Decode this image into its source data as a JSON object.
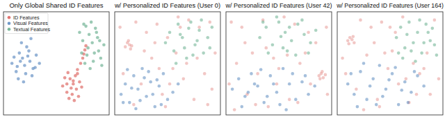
{
  "chart_data": [
    {
      "type": "scatter",
      "title": "Only Global Shared ID Features",
      "xlim": [
        0,
        100
      ],
      "ylim": [
        0,
        100
      ],
      "tick_labels": false,
      "grid": false,
      "legend": "upper left",
      "marker": "o",
      "series": [
        {
          "name": "ID Features",
          "color": "#d9534f",
          "x": [
            56,
            60,
            63,
            66,
            69,
            72,
            58,
            62,
            65,
            68,
            71,
            74,
            60,
            64,
            67,
            70,
            61,
            66,
            70,
            73,
            75,
            76,
            77,
            78
          ],
          "values": [
            28,
            22,
            35,
            30,
            25,
            32,
            36,
            16,
            20,
            38,
            18,
            27,
            30,
            26,
            14,
            40,
            41,
            33,
            44,
            50,
            55,
            59,
            63,
            67
          ]
        },
        {
          "name": "Visual Features",
          "color": "#4c7fba",
          "x": [
            8,
            12,
            15,
            18,
            20,
            22,
            25,
            28,
            31,
            34,
            10,
            14,
            17,
            21,
            24,
            27,
            30,
            13,
            19,
            23,
            16,
            26
          ],
          "values": [
            50,
            42,
            60,
            55,
            48,
            66,
            52,
            45,
            58,
            50,
            56,
            35,
            70,
            40,
            62,
            38,
            46,
            47,
            32,
            57,
            52,
            74
          ]
        },
        {
          "name": "Textual Features",
          "color": "#5aa783",
          "x": [
            72,
            75,
            78,
            80,
            83,
            86,
            89,
            92,
            95,
            74,
            77,
            81,
            84,
            87,
            90,
            93,
            79,
            85,
            88,
            82,
            76,
            91
          ],
          "values": [
            80,
            72,
            86,
            65,
            90,
            60,
            75,
            55,
            68,
            60,
            50,
            78,
            70,
            84,
            62,
            48,
            58,
            52,
            80,
            45,
            88,
            72
          ]
        }
      ]
    },
    {
      "type": "scatter",
      "title": "w/ Personalized ID Features (User 0)",
      "xlim": [
        0,
        100
      ],
      "ylim": [
        0,
        100
      ],
      "tick_labels": false,
      "grid": false,
      "marker": "o",
      "series": [
        {
          "color": "#e58f8c",
          "x": [
            10,
            12,
            14,
            16,
            13,
            15,
            5,
            20,
            30,
            40,
            50,
            60,
            70,
            80,
            90,
            95,
            8,
            25,
            35,
            45,
            55,
            65,
            75,
            85,
            92,
            18,
            28,
            38,
            48,
            58,
            68,
            78,
            88,
            42,
            52,
            62
          ],
          "values": [
            66,
            70,
            68,
            67,
            72,
            64,
            85,
            90,
            80,
            88,
            75,
            95,
            92,
            85,
            90,
            60,
            40,
            30,
            55,
            20,
            45,
            35,
            15,
            40,
            25,
            10,
            62,
            70,
            8,
            60,
            50,
            55,
            10,
            45,
            30,
            85
          ]
        },
        {
          "color": "#4c7fba",
          "x": [
            6,
            10,
            14,
            18,
            22,
            26,
            30,
            34,
            38,
            42,
            46,
            50,
            55,
            60,
            12,
            20,
            28,
            36,
            44,
            16,
            24,
            32,
            40,
            8
          ],
          "values": [
            20,
            30,
            12,
            38,
            25,
            45,
            18,
            32,
            8,
            28,
            40,
            15,
            22,
            30,
            44,
            6,
            36,
            20,
            10,
            26,
            14,
            42,
            34,
            12
          ]
        },
        {
          "color": "#5aa783",
          "x": [
            48,
            52,
            56,
            60,
            64,
            68,
            72,
            76,
            80,
            84,
            88,
            92,
            58,
            66,
            74,
            82,
            90,
            62,
            70,
            78
          ],
          "values": [
            70,
            80,
            62,
            88,
            75,
            55,
            90,
            68,
            82,
            60,
            75,
            85,
            50,
            65,
            58,
            92,
            65,
            78,
            84,
            72
          ]
        }
      ]
    },
    {
      "type": "scatter",
      "title": "w/ Personalized ID Features (User 42)",
      "xlim": [
        0,
        100
      ],
      "ylim": [
        0,
        100
      ],
      "tick_labels": false,
      "grid": false,
      "marker": "o",
      "series": [
        {
          "color": "#e58f8c",
          "x": [
            88,
            90,
            92,
            94,
            89,
            91,
            5,
            15,
            25,
            35,
            45,
            55,
            65,
            75,
            85,
            95,
            10,
            20,
            30,
            40,
            50,
            60,
            70,
            80,
            8,
            18,
            28,
            38,
            48,
            58,
            68,
            78,
            96,
            3
          ],
          "values": [
            38,
            40,
            36,
            39,
            35,
            42,
            90,
            85,
            60,
            92,
            55,
            95,
            88,
            60,
            70,
            85,
            50,
            20,
            40,
            8,
            45,
            15,
            50,
            30,
            5,
            70,
            10,
            65,
            30,
            58,
            12,
            80,
            20,
            30
          ]
        },
        {
          "color": "#4c7fba",
          "x": [
            6,
            12,
            18,
            24,
            30,
            36,
            42,
            48,
            54,
            60,
            66,
            72,
            78,
            84,
            15,
            27,
            39,
            51,
            63,
            75,
            21,
            33,
            45,
            57
          ],
          "values": [
            25,
            35,
            18,
            40,
            28,
            12,
            38,
            22,
            45,
            30,
            15,
            32,
            20,
            28,
            8,
            30,
            18,
            10,
            40,
            38,
            22,
            44,
            30,
            5
          ]
        },
        {
          "color": "#5aa783",
          "x": [
            32,
            38,
            44,
            50,
            56,
            62,
            68,
            74,
            80,
            85,
            40,
            48,
            54,
            60,
            66,
            72,
            35,
            58,
            78,
            52
          ],
          "values": [
            75,
            85,
            68,
            90,
            80,
            72,
            88,
            78,
            70,
            82,
            60,
            95,
            65,
            85,
            58,
            92,
            90,
            62,
            60,
            76
          ]
        }
      ]
    },
    {
      "type": "scatter",
      "title": "w/ Personalized ID Features (User 164)",
      "xlim": [
        0,
        100
      ],
      "ylim": [
        0,
        100
      ],
      "tick_labels": false,
      "grid": false,
      "marker": "o",
      "series": [
        {
          "color": "#e58f8c",
          "x": [
            10,
            12,
            14,
            16,
            11,
            15,
            5,
            22,
            32,
            42,
            52,
            62,
            72,
            82,
            92,
            96,
            8,
            18,
            28,
            38,
            48,
            58,
            68,
            78,
            88,
            25,
            35,
            45,
            55,
            65,
            75,
            85,
            40,
            50
          ],
          "values": [
            72,
            75,
            73,
            70,
            69,
            76,
            55,
            92,
            85,
            90,
            62,
            95,
            50,
            45,
            92,
            35,
            40,
            25,
            58,
            15,
            45,
            30,
            12,
            40,
            20,
            5,
            70,
            60,
            80,
            35,
            20,
            60,
            8,
            85
          ]
        },
        {
          "color": "#4c7fba",
          "x": [
            10,
            16,
            22,
            28,
            34,
            40,
            46,
            52,
            58,
            64,
            70,
            76,
            82,
            19,
            31,
            43,
            55,
            67,
            25,
            37,
            49,
            61,
            13,
            73
          ],
          "values": [
            30,
            20,
            42,
            15,
            35,
            48,
            25,
            40,
            10,
            32,
            22,
            38,
            28,
            8,
            28,
            18,
            46,
            12,
            50,
            10,
            34,
            24,
            40,
            42
          ]
        },
        {
          "color": "#5aa783",
          "x": [
            56,
            60,
            64,
            68,
            72,
            76,
            80,
            84,
            88,
            92,
            62,
            70,
            78,
            86,
            94,
            66,
            74,
            82,
            90,
            58
          ],
          "values": [
            75,
            85,
            65,
            90,
            70,
            80,
            60,
            88,
            72,
            68,
            55,
            62,
            92,
            80,
            58,
            78,
            52,
            70,
            84,
            60
          ]
        }
      ]
    }
  ]
}
